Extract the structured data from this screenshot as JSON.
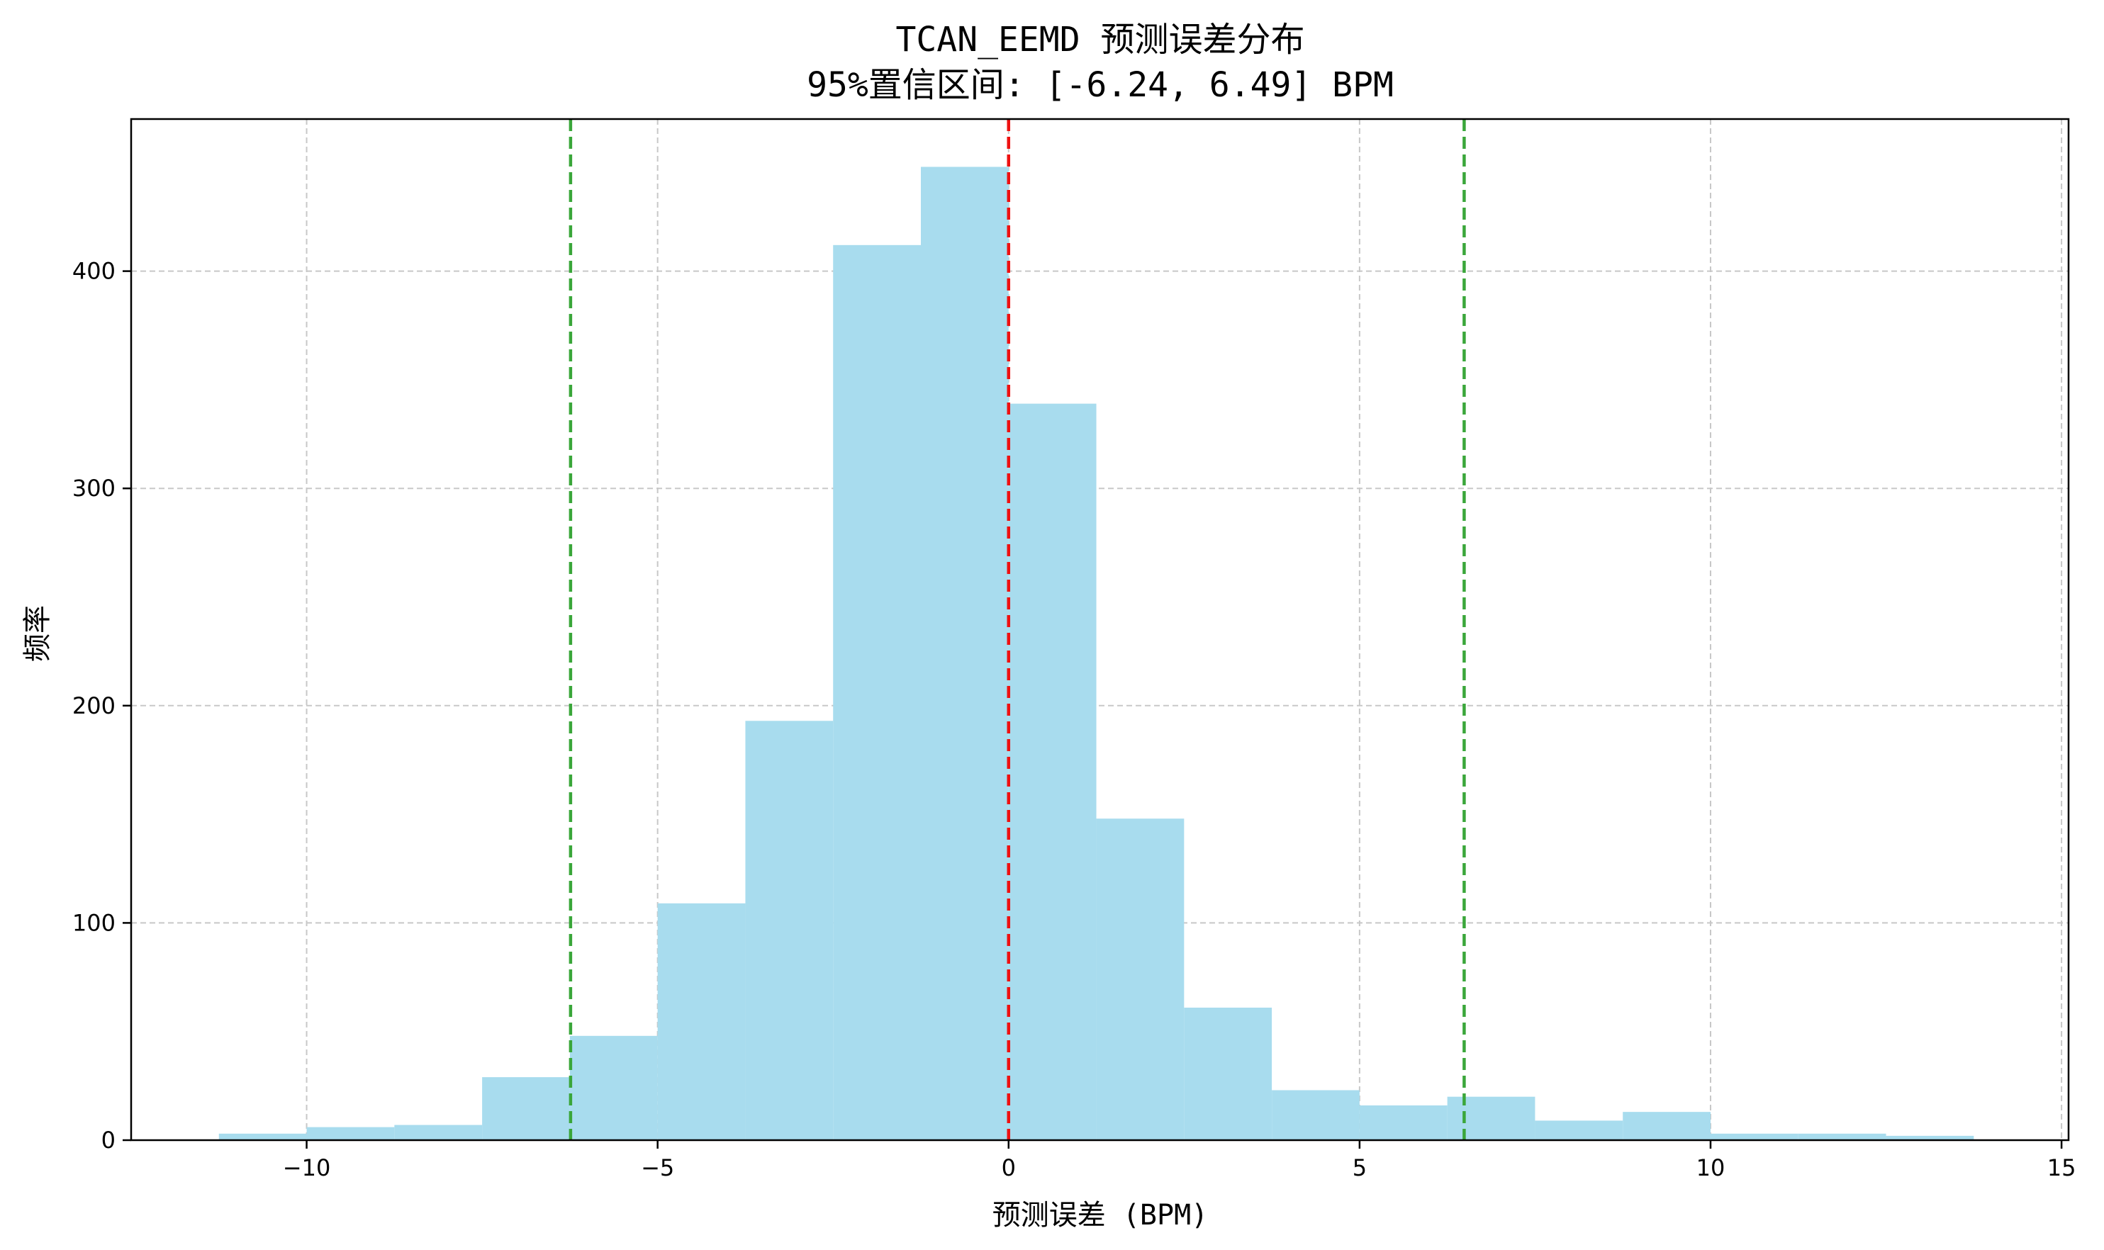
{
  "colors": {
    "bar": "#a8dcee",
    "mean_line": "#ee1111",
    "ci_line": "#3aa63a",
    "grid": "#c8c8c8",
    "axis": "#000000"
  },
  "chart_data": {
    "type": "bar",
    "title": "TCAN_EEMD 预测误差分布",
    "subtitle": "95%置信区间: [-6.24, 6.49] BPM",
    "xlabel": "预测误差 (BPM)",
    "ylabel": "频率",
    "xlim": [
      -12.5,
      15.1
    ],
    "ylim": [
      0,
      470
    ],
    "grid": true,
    "x_ticks": [
      -10,
      -5,
      0,
      5,
      10,
      15
    ],
    "x_tick_labels": [
      "−10",
      "−5",
      "0",
      "5",
      "10",
      "15"
    ],
    "y_ticks": [
      0,
      100,
      200,
      300,
      400
    ],
    "y_tick_labels": [
      "0",
      "100",
      "200",
      "300",
      "400"
    ],
    "bin_edges": [
      -11.25,
      -10.0,
      -8.75,
      -7.5,
      -6.25,
      -5.0,
      -3.75,
      -2.5,
      -1.25,
      0.0,
      1.25,
      2.5,
      3.75,
      5.0,
      6.25,
      7.5,
      8.75,
      10.0,
      11.25,
      12.5,
      13.75
    ],
    "values": [
      3,
      6,
      7,
      29,
      48,
      109,
      193,
      412,
      448,
      339,
      148,
      61,
      23,
      16,
      20,
      9,
      13,
      3,
      3,
      2
    ],
    "vertical_lines": [
      {
        "x": 0.0,
        "style": "dashed",
        "color_key": "mean_line"
      },
      {
        "x": -6.24,
        "style": "dashed",
        "color_key": "ci_line"
      },
      {
        "x": 6.49,
        "style": "dashed",
        "color_key": "ci_line"
      }
    ]
  }
}
